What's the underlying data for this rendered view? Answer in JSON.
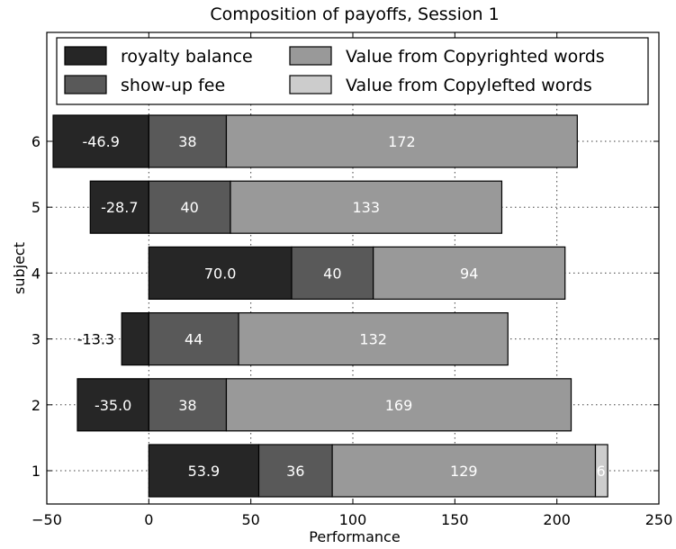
{
  "chart_data": {
    "type": "bar",
    "orientation": "horizontal",
    "stacked": true,
    "title": "Composition of payoffs, Session 1",
    "xlabel": "Performance",
    "ylabel": "subject",
    "xlim": [
      -50,
      250
    ],
    "xticks": [
      -50,
      0,
      50,
      100,
      150,
      200,
      250
    ],
    "categories": [
      "1",
      "2",
      "3",
      "4",
      "5",
      "6"
    ],
    "grid": true,
    "legend_position": "top",
    "series": [
      {
        "name": "royalty balance",
        "color": "#262626",
        "values": [
          53.9,
          -35.0,
          -13.3,
          70.0,
          -28.7,
          -46.9
        ],
        "labels": [
          "53.9",
          "-35.0",
          "-13.3",
          "70.0",
          "-28.7",
          "-46.9"
        ]
      },
      {
        "name": "show-up fee",
        "color": "#595959",
        "values": [
          36,
          38,
          44,
          40,
          40,
          38
        ],
        "labels": [
          "36",
          "38",
          "44",
          "40",
          "40",
          "38"
        ]
      },
      {
        "name": "Value from Copyrighted words",
        "color": "#999999",
        "values": [
          129,
          169,
          132,
          94,
          133,
          172
        ],
        "labels": [
          "129",
          "169",
          "132",
          "94",
          "133",
          "172"
        ]
      },
      {
        "name": "Value from Copylefted words",
        "color": "#cccccc",
        "values": [
          6,
          0,
          0,
          0,
          0,
          0
        ],
        "labels": [
          "6",
          "",
          "",
          "",
          "",
          ""
        ]
      }
    ]
  }
}
